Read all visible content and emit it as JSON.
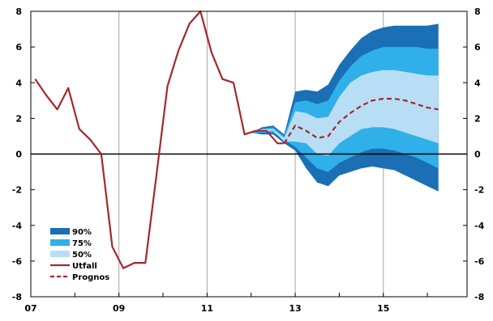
{
  "chart_data": {
    "type": "area",
    "title": "",
    "xlabel": "",
    "ylabel": "",
    "xlim": [
      2007,
      2016.9
    ],
    "ylim": [
      -8,
      8
    ],
    "x_ticks": [
      {
        "value": 2007,
        "label": "07"
      },
      {
        "value": 2009,
        "label": "09"
      },
      {
        "value": 2011,
        "label": "11"
      },
      {
        "value": 2013,
        "label": "13"
      },
      {
        "value": 2015,
        "label": "15"
      }
    ],
    "y_ticks": [
      -8,
      -6,
      -4,
      -2,
      0,
      2,
      4,
      6,
      8
    ],
    "vertical_grid_x": [
      2009,
      2011,
      2013,
      2015
    ],
    "grid_color": "#a6a6a6",
    "legend": {
      "placement": "bottom-left",
      "items": [
        {
          "label": "90%",
          "kind": "band",
          "color": "#1a6fb5"
        },
        {
          "label": "75%",
          "kind": "band",
          "color": "#2fb0e8"
        },
        {
          "label": "50%",
          "kind": "band",
          "color": "#b8def5"
        },
        {
          "label": "Utfall",
          "kind": "line",
          "color": "#a3282d"
        },
        {
          "label": "Prognos",
          "kind": "dashed",
          "color": "#a3282d"
        }
      ]
    },
    "bands": {
      "x": [
        2012.0,
        2012.25,
        2012.5,
        2012.75,
        2013.0,
        2013.25,
        2013.5,
        2013.75,
        2014.0,
        2014.25,
        2014.5,
        2014.75,
        2015.0,
        2015.25,
        2015.5,
        2015.75,
        2016.0,
        2016.25
      ],
      "p90": {
        "upper": [
          1.2,
          1.5,
          1.6,
          1.1,
          3.5,
          3.6,
          3.5,
          3.9,
          5.0,
          5.8,
          6.5,
          6.9,
          7.1,
          7.2,
          7.2,
          7.2,
          7.2,
          7.3
        ],
        "lower": [
          1.2,
          1.1,
          1.1,
          0.6,
          0.2,
          -0.8,
          -1.6,
          -1.8,
          -1.2,
          -1.0,
          -0.8,
          -0.7,
          -0.8,
          -0.9,
          -1.2,
          -1.5,
          -1.8,
          -2.1
        ]
      },
      "p75": {
        "upper": [
          1.2,
          1.4,
          1.5,
          1.0,
          2.9,
          3.0,
          2.8,
          3.0,
          4.1,
          4.9,
          5.5,
          5.8,
          6.0,
          6.0,
          6.0,
          6.0,
          5.9,
          5.9
        ],
        "lower": [
          1.2,
          1.2,
          1.2,
          0.8,
          0.4,
          -0.2,
          -0.8,
          -1.0,
          -0.5,
          -0.2,
          0.1,
          0.3,
          0.3,
          0.2,
          0.0,
          -0.2,
          -0.5,
          -0.8
        ]
      },
      "p50": {
        "upper": [
          1.2,
          1.4,
          1.4,
          0.9,
          2.4,
          2.3,
          2.0,
          2.1,
          3.2,
          4.0,
          4.4,
          4.6,
          4.7,
          4.7,
          4.6,
          4.5,
          4.4,
          4.4
        ],
        "lower": [
          1.2,
          1.3,
          1.3,
          0.7,
          0.7,
          0.6,
          0.0,
          -0.1,
          0.6,
          1.0,
          1.4,
          1.5,
          1.5,
          1.4,
          1.2,
          1.0,
          0.8,
          0.6
        ]
      }
    },
    "series": [
      {
        "name": "Utfall",
        "style": "solid",
        "color": "#a3282d",
        "x": [
          2007.1,
          2007.35,
          2007.6,
          2007.85,
          2008.1,
          2008.35,
          2008.6,
          2008.85,
          2009.1,
          2009.35,
          2009.6,
          2009.85,
          2010.1,
          2010.35,
          2010.6,
          2010.85,
          2011.1,
          2011.35,
          2011.6,
          2011.85,
          2012.1,
          2012.35,
          2012.6,
          2012.75
        ],
        "y": [
          4.2,
          3.3,
          2.5,
          3.7,
          1.4,
          0.8,
          0.0,
          -5.2,
          -6.4,
          -6.1,
          -6.1,
          -1.2,
          3.8,
          5.8,
          7.3,
          8.0,
          5.7,
          4.2,
          4.0,
          1.1,
          1.3,
          1.3,
          0.6,
          0.6
        ]
      },
      {
        "name": "Prognos",
        "style": "dashed",
        "color": "#a3282d",
        "x": [
          2012.75,
          2013.0,
          2013.25,
          2013.5,
          2013.75,
          2014.0,
          2014.25,
          2014.5,
          2014.75,
          2015.0,
          2015.25,
          2015.5,
          2015.75,
          2016.0,
          2016.25
        ],
        "y": [
          0.6,
          1.6,
          1.3,
          0.9,
          1.0,
          1.8,
          2.3,
          2.7,
          3.0,
          3.1,
          3.1,
          3.0,
          2.8,
          2.6,
          2.5
        ]
      }
    ]
  }
}
